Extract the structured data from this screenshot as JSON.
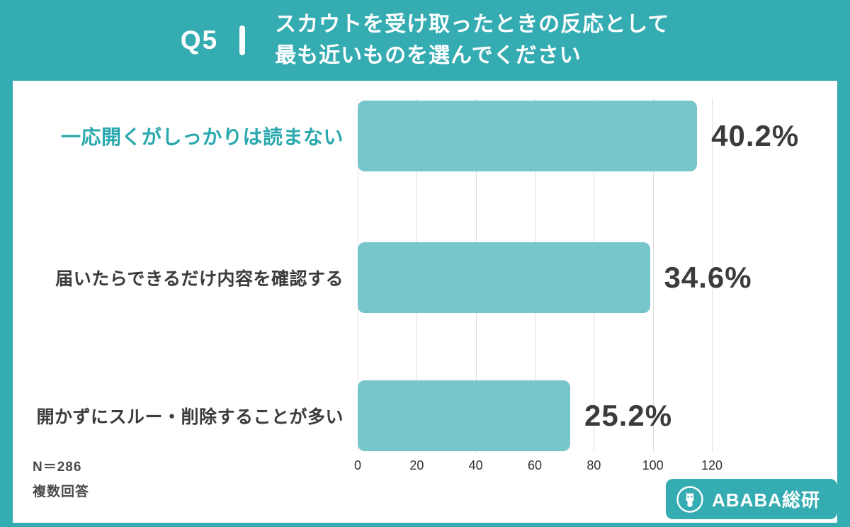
{
  "header": {
    "q_label": "Q5",
    "title_line1": "スカウトを受け取ったときの反応として",
    "title_line2": "最も近いものを選んでください"
  },
  "chart_data": {
    "type": "bar",
    "orientation": "horizontal",
    "categories": [
      "一応開くがしっかりは読まない",
      "届いたらできるだけ内容を確認する",
      "開かずにスルー・削除することが多い"
    ],
    "values": [
      115,
      99,
      72
    ],
    "percentages": [
      40.2,
      34.6,
      25.2
    ],
    "percent_labels": [
      "40.2%",
      "34.6%",
      "25.2%"
    ],
    "xlim": [
      0,
      120
    ],
    "xticks": [
      0,
      20,
      40,
      60,
      80,
      100,
      120
    ],
    "grid": true,
    "legend": false,
    "highlight_category_index": 0
  },
  "footer": {
    "n_label": "N＝286",
    "note": "複数回答",
    "brand": "ABABA総研"
  },
  "colors": {
    "background_teal": "#35ACB1",
    "bar_teal": "#77C6CA",
    "highlight_label_teal": "#29A8AE",
    "text_dark": "#3B3B3B",
    "gridline_gray": "#DDDDDD",
    "card_white": "#FFFFFF"
  }
}
